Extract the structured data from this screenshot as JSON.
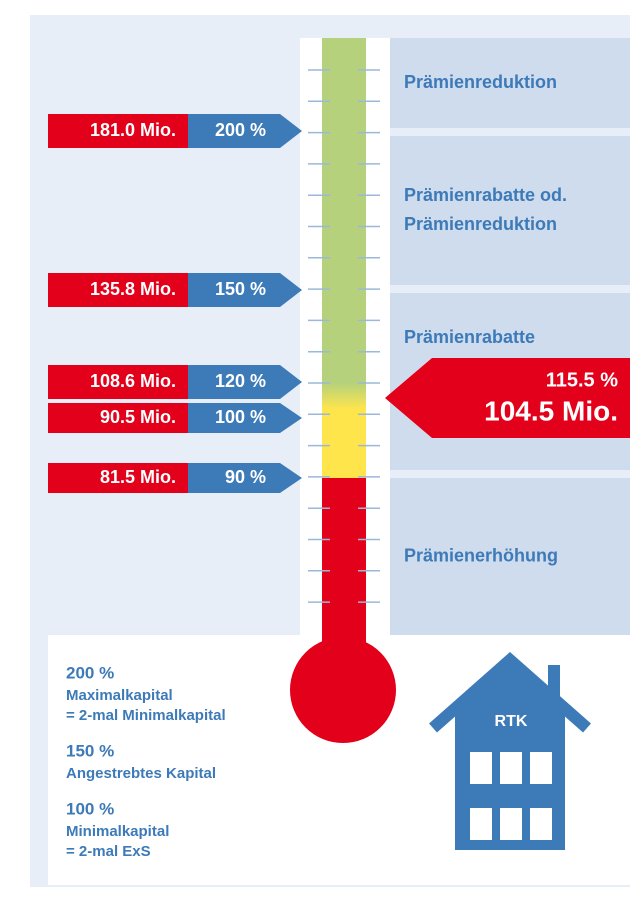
{
  "markers": [
    {
      "amount": "181.0 Mio.",
      "percent": "200 %"
    },
    {
      "amount": "135.8 Mio.",
      "percent": "150 %"
    },
    {
      "amount": "108.6 Mio.",
      "percent": "120 %"
    },
    {
      "amount": "90.5 Mio.",
      "percent": "100 %"
    },
    {
      "amount": "81.5 Mio.",
      "percent": "90 %"
    }
  ],
  "zones": [
    {
      "lines": [
        "Prämienreduktion"
      ]
    },
    {
      "lines": [
        "Prämienrabatte od.",
        "Prämienreduktion"
      ]
    },
    {
      "lines": [
        "Prämienrabatte"
      ]
    },
    {
      "lines": [
        "Prämienerhöhung"
      ]
    }
  ],
  "current": {
    "percent": "115.5 %",
    "amount": "104.5 Mio."
  },
  "legend": [
    {
      "percent": "200 %",
      "lines": [
        "Maximalkapital",
        "= 2-mal Minimalkapital"
      ]
    },
    {
      "percent": "150 %",
      "lines": [
        "Angestrebtes Kapital"
      ]
    },
    {
      "percent": "100 %",
      "lines": [
        "Minimalkapital",
        "= 2-mal ExS"
      ]
    }
  ],
  "house": {
    "label": "RTK"
  }
}
